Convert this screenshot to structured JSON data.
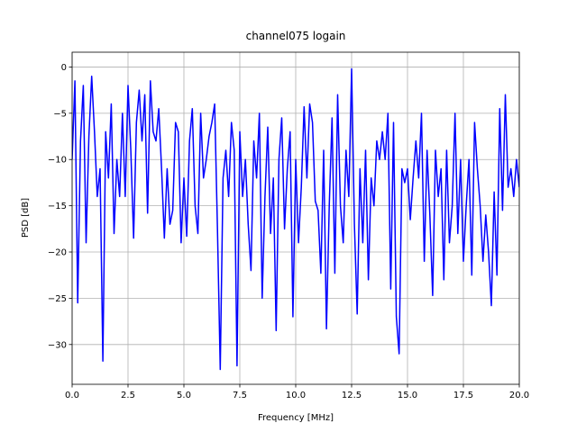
{
  "chart_data": {
    "type": "line",
    "title": "channel075 logain",
    "xlabel": "Frequency [MHz]",
    "ylabel": "PSD [dB]",
    "x": [
      0,
      0.125,
      0.25,
      0.375,
      0.5,
      0.625,
      0.75,
      0.875,
      1,
      1.125,
      1.25,
      1.375,
      1.5,
      1.625,
      1.75,
      1.875,
      2,
      2.125,
      2.25,
      2.375,
      2.5,
      2.625,
      2.75,
      2.875,
      3,
      3.125,
      3.25,
      3.375,
      3.5,
      3.625,
      3.75,
      3.875,
      4,
      4.125,
      4.25,
      4.375,
      4.5,
      4.625,
      4.75,
      4.875,
      5,
      5.125,
      5.25,
      5.375,
      5.5,
      5.625,
      5.75,
      5.875,
      6,
      6.125,
      6.25,
      6.375,
      6.5,
      6.625,
      6.75,
      6.875,
      7,
      7.125,
      7.25,
      7.375,
      7.5,
      7.625,
      7.75,
      7.875,
      8,
      8.125,
      8.25,
      8.375,
      8.5,
      8.625,
      8.75,
      8.875,
      9,
      9.125,
      9.25,
      9.375,
      9.5,
      9.625,
      9.75,
      9.875,
      10,
      10.125,
      10.25,
      10.375,
      10.5,
      10.625,
      10.75,
      10.875,
      11,
      11.125,
      11.25,
      11.375,
      11.5,
      11.625,
      11.75,
      11.875,
      12,
      12.125,
      12.25,
      12.375,
      12.5,
      12.625,
      12.75,
      12.875,
      13,
      13.125,
      13.25,
      13.375,
      13.5,
      13.625,
      13.75,
      13.875,
      14,
      14.125,
      14.25,
      14.375,
      14.5,
      14.625,
      14.75,
      14.875,
      15,
      15.125,
      15.25,
      15.375,
      15.5,
      15.625,
      15.75,
      15.875,
      16,
      16.125,
      16.25,
      16.375,
      16.5,
      16.625,
      16.75,
      16.875,
      17,
      17.125,
      17.25,
      17.375,
      17.5,
      17.625,
      17.75,
      17.875,
      18,
      18.125,
      18.25,
      18.375,
      18.5,
      18.625,
      18.75,
      18.875,
      19,
      19.125,
      19.25,
      19.375,
      19.5,
      19.625,
      19.75,
      19.875,
      20
    ],
    "series": [
      {
        "color": "#0000ff",
        "values": [
          -10,
          -1.5,
          -25.5,
          -8,
          -2,
          -19,
          -7.5,
          -1,
          -7,
          -14,
          -11,
          -31.8,
          -7,
          -12,
          -4,
          -18,
          -10,
          -14,
          -5,
          -14,
          -2,
          -9,
          -18.5,
          -6,
          -2.5,
          -8,
          -3,
          -15.8,
          -1.5,
          -7,
          -8,
          -4.5,
          -11,
          -18.5,
          -11,
          -17,
          -15.5,
          -6,
          -7,
          -19,
          -12,
          -18.3,
          -8,
          -4.5,
          -15,
          -18,
          -5,
          -12,
          -10,
          -7.5,
          -6,
          -4,
          -17.5,
          -32.7,
          -12,
          -9,
          -14,
          -6,
          -9,
          -32.3,
          -7,
          -14,
          -10,
          -17,
          -22,
          -8,
          -12,
          -5,
          -25,
          -14,
          -6.5,
          -18,
          -12,
          -28.5,
          -10,
          -5.5,
          -17.5,
          -11,
          -7,
          -27,
          -10,
          -19,
          -13,
          -4.3,
          -12,
          -4,
          -6,
          -14.5,
          -15.5,
          -22.3,
          -9,
          -28.3,
          -15,
          -5.5,
          -22.3,
          -3,
          -15,
          -19,
          -9,
          -14,
          -0.2,
          -17,
          -26.7,
          -11,
          -19,
          -9,
          -23,
          -12,
          -15,
          -8,
          -10,
          -7,
          -10,
          -5,
          -24,
          -6,
          -27,
          -31,
          -11,
          -12.5,
          -11,
          -16.5,
          -12,
          -8,
          -12,
          -5,
          -21,
          -9,
          -16,
          -24.7,
          -9,
          -14,
          -11,
          -23,
          -9,
          -19,
          -15,
          -5,
          -18,
          -10,
          -21,
          -15,
          -10,
          -22.5,
          -6,
          -11,
          -15,
          -21,
          -16,
          -20,
          -25.8,
          -13.5,
          -22.5,
          -4.5,
          -15.5,
          -3,
          -13,
          -11,
          -14,
          -10,
          -13
        ]
      }
    ],
    "xlim": [
      0,
      20
    ],
    "ylim": [
      -34.3,
      1.6
    ],
    "xticks": [
      {
        "value": 0,
        "label": "0.0"
      },
      {
        "value": 2.5,
        "label": "2.5"
      },
      {
        "value": 5,
        "label": "5.0"
      },
      {
        "value": 7.5,
        "label": "7.5"
      },
      {
        "value": 10,
        "label": "10.0"
      },
      {
        "value": 12.5,
        "label": "12.5"
      },
      {
        "value": 15,
        "label": "15.0"
      },
      {
        "value": 17.5,
        "label": "17.5"
      },
      {
        "value": 20,
        "label": "20.0"
      }
    ],
    "yticks": [
      0,
      {
        "value": -5,
        "label": "−5"
      },
      {
        "value": -10,
        "label": "−10"
      },
      {
        "value": -15,
        "label": "−15"
      },
      {
        "value": -20,
        "label": "−20"
      },
      {
        "value": -25,
        "label": "−25"
      },
      {
        "value": -30,
        "label": "−30"
      }
    ],
    "grid": true
  }
}
